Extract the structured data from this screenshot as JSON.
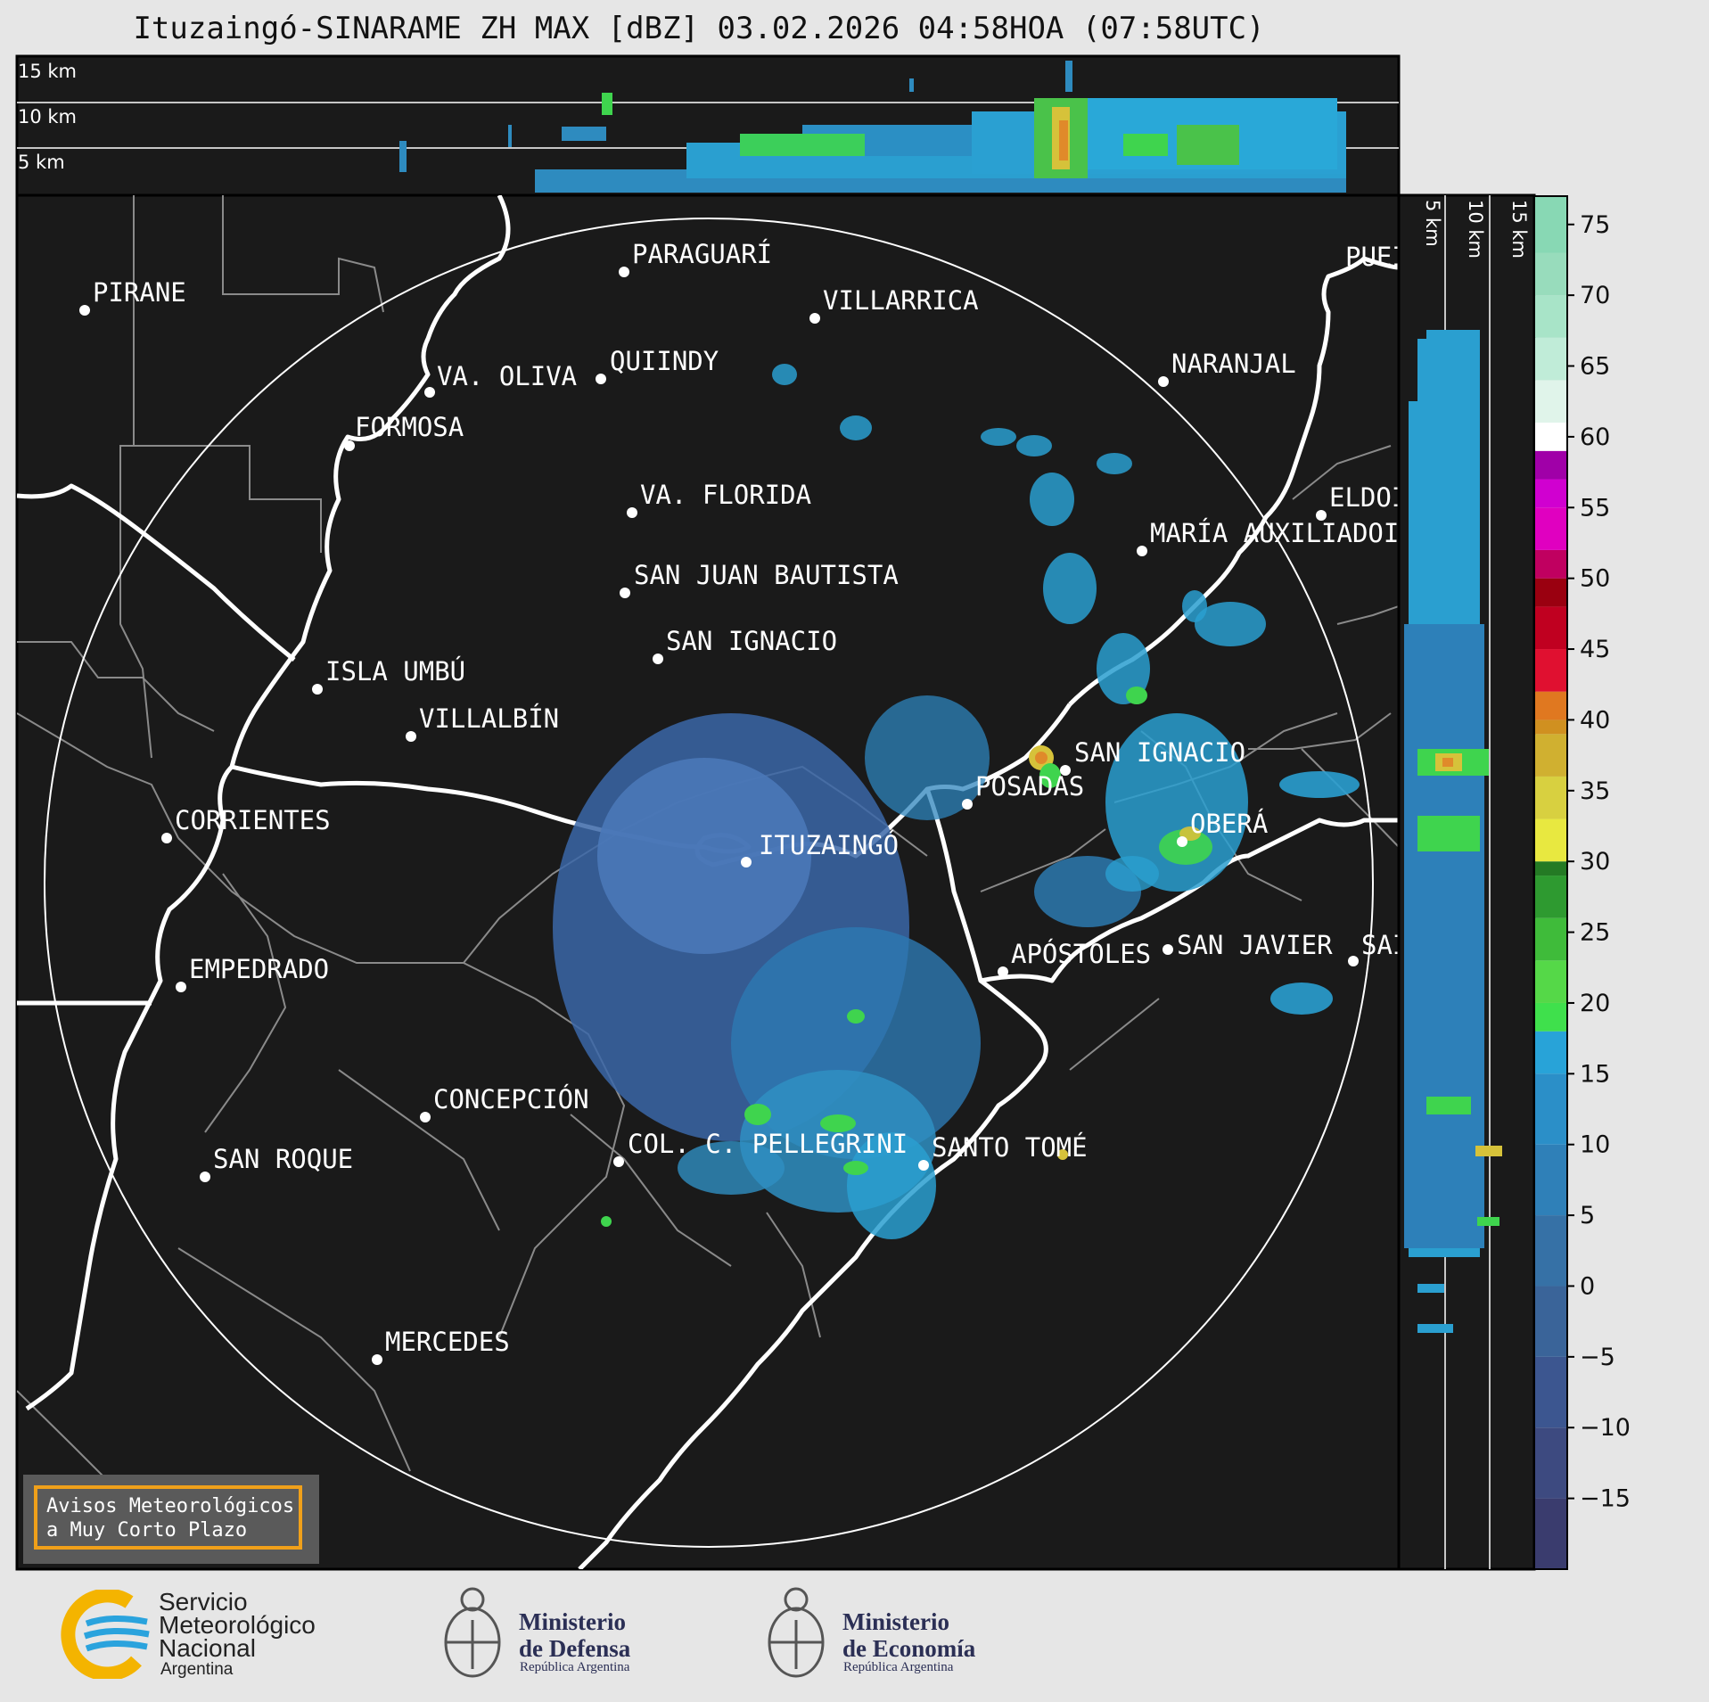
{
  "header": {
    "title": "Ituzaingó-SINARAME ZH MAX [dBZ] 03.02.2026 04:58HOA (07:58UTC)"
  },
  "top_panel": {
    "height_labels": [
      "15 km",
      "10 km",
      "5 km"
    ]
  },
  "side_panel": {
    "height_labels": [
      "5 km",
      "10 km",
      "15 km"
    ]
  },
  "colorbar": {
    "unit": "dBZ",
    "ticks": [
      "75",
      "70",
      "65",
      "60",
      "55",
      "50",
      "45",
      "40",
      "35",
      "30",
      "25",
      "20",
      "15",
      "10",
      "5",
      "0",
      "−5",
      "−10",
      "−15"
    ],
    "range": [
      -20,
      77
    ]
  },
  "cities": [
    {
      "name": "PIRANE"
    },
    {
      "name": "PARAGUARÍ"
    },
    {
      "name": "VILLARRICA"
    },
    {
      "name": "QUIINDY"
    },
    {
      "name": "VA. OLIVA"
    },
    {
      "name": "NARANJAL"
    },
    {
      "name": "FORMOSA"
    },
    {
      "name": "VA. FLORIDA"
    },
    {
      "name": "ELDOI"
    },
    {
      "name": "MARÍA AUXILIADOI"
    },
    {
      "name": "SAN JUAN BAUTISTA"
    },
    {
      "name": "SAN IGNACIO"
    },
    {
      "name": "ISLA UMBÚ"
    },
    {
      "name": "VILLALBÍN"
    },
    {
      "name": "SAN IGNACIO"
    },
    {
      "name": "POSADAS"
    },
    {
      "name": "CORRIENTES"
    },
    {
      "name": "ITUZAINGÓ"
    },
    {
      "name": "OBERÁ"
    },
    {
      "name": "APÓSTOLES"
    },
    {
      "name": "SAN JAVIER"
    },
    {
      "name": "SAI"
    },
    {
      "name": "EMPEDRADO"
    },
    {
      "name": "CONCEPCIÓN"
    },
    {
      "name": "COL. C. PELLEGRINI"
    },
    {
      "name": "SANTO TOMÉ"
    },
    {
      "name": "SAN ROQUE"
    },
    {
      "name": "MERCEDES"
    },
    {
      "name": "PUEI"
    }
  ],
  "alerts": {
    "line1": "Avisos Meteorológicos",
    "line2": "a Muy Corto Plazo"
  },
  "logos": {
    "smn_line1": "Servicio",
    "smn_line2": "Meteorológico",
    "smn_line3": "Nacional",
    "smn_sub": "Argentina",
    "defensa_line1": "Ministerio",
    "defensa_line2": "de Defensa",
    "defensa_sub": "República Argentina",
    "economia_line1": "Ministerio",
    "economia_line2": "de Economía",
    "economia_sub": "República Argentina"
  },
  "colors": {
    "background": "#1a1a1a",
    "page": "#e6e6e6",
    "alert_border": "#f0a01a"
  }
}
